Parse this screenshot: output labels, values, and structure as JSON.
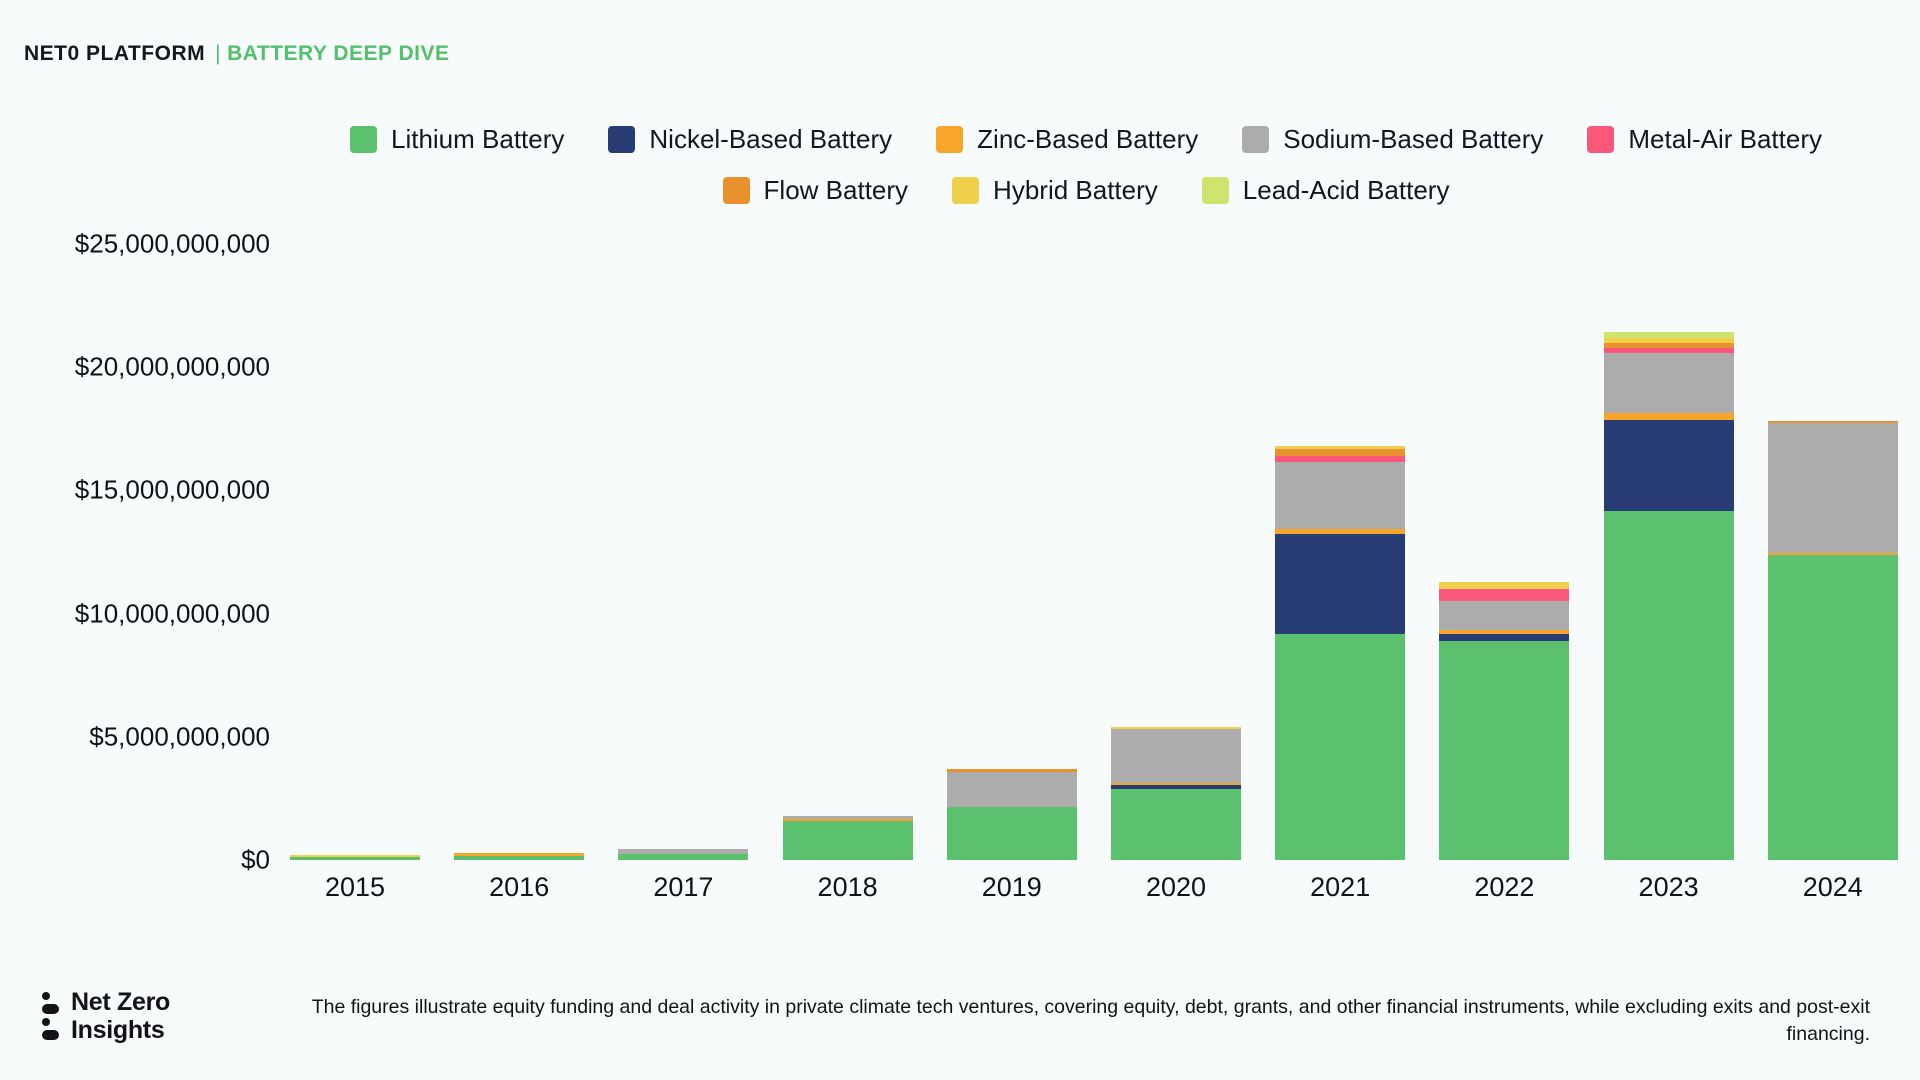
{
  "header": {
    "brand": "NET0 PLATFORM",
    "divider": "|",
    "subtitle": "BATTERY DEEP DIVE"
  },
  "chart_data": {
    "type": "bar",
    "stacked": true,
    "title": "Battery Deep Dive",
    "unit": "USD billions",
    "ylabel": "",
    "xlabel": "",
    "ylim": [
      0,
      25
    ],
    "grid": false,
    "legend_position": "top-center",
    "categories": [
      "2015",
      "2016",
      "2017",
      "2018",
      "2019",
      "2020",
      "2021",
      "2022",
      "2023",
      "2024"
    ],
    "series": [
      {
        "name": "Lithium Battery",
        "color": "#5bc16e",
        "values": [
          0.12,
          0.17,
          0.25,
          1.58,
          2.14,
          2.9,
          9.19,
          8.9,
          14.15,
          12.38
        ]
      },
      {
        "name": "Nickel-Based Battery",
        "color": "#283d73",
        "values": [
          0,
          0,
          0,
          0,
          0,
          0.15,
          4.03,
          0.28,
          3.71,
          0
        ]
      },
      {
        "name": "Zinc-Based Battery",
        "color": "#f8a62a",
        "values": [
          0,
          0.1,
          0,
          0.1,
          0,
          0.08,
          0.2,
          0.16,
          0.28,
          0.1
        ]
      },
      {
        "name": "Sodium-Based Battery",
        "color": "#acacac",
        "values": [
          0,
          0,
          0.18,
          0.1,
          1.45,
          2.2,
          2.74,
          1.17,
          2.42,
          5.24
        ]
      },
      {
        "name": "Metal-Air Battery",
        "color": "#f9587a",
        "values": [
          0,
          0,
          0,
          0,
          0,
          0,
          0.24,
          0.48,
          0.24,
          0
        ]
      },
      {
        "name": "Flow Battery",
        "color": "#e8922f",
        "values": [
          0,
          0,
          0,
          0,
          0.12,
          0,
          0.28,
          0,
          0.2,
          0.1
        ]
      },
      {
        "name": "Hybrid Battery",
        "color": "#eed04b",
        "values": [
          0.1,
          0,
          0,
          0,
          0,
          0.08,
          0.12,
          0.28,
          0.2,
          0
        ]
      },
      {
        "name": "Lead-Acid Battery",
        "color": "#cfe36f",
        "values": [
          0,
          0,
          0,
          0,
          0,
          0,
          0,
          0,
          0.24,
          0
        ]
      }
    ],
    "legend_rows": [
      [
        0,
        1,
        2,
        3,
        4
      ],
      [
        5,
        6,
        7
      ]
    ],
    "y_ticks": [
      {
        "value": 0,
        "label": "$0"
      },
      {
        "value": 5,
        "label": "$5,000,000,000"
      },
      {
        "value": 10,
        "label": "$10,000,000,000"
      },
      {
        "value": 15,
        "label": "$15,000,000,000"
      },
      {
        "value": 20,
        "label": "$20,000,000,000"
      },
      {
        "value": 25,
        "label": "$25,000,000,000"
      }
    ]
  },
  "footer": {
    "logo_line1": "Net Zero",
    "logo_line2": "Insights",
    "disclaimer": "The figures illustrate equity funding and deal activity in private climate tech ventures, covering equity, debt, grants, and other financial instruments, while excluding exits and post-exit financing."
  },
  "colors": {
    "background": "#f7fbfb",
    "accent_green": "#53c06d",
    "text_dark": "#16161f"
  }
}
